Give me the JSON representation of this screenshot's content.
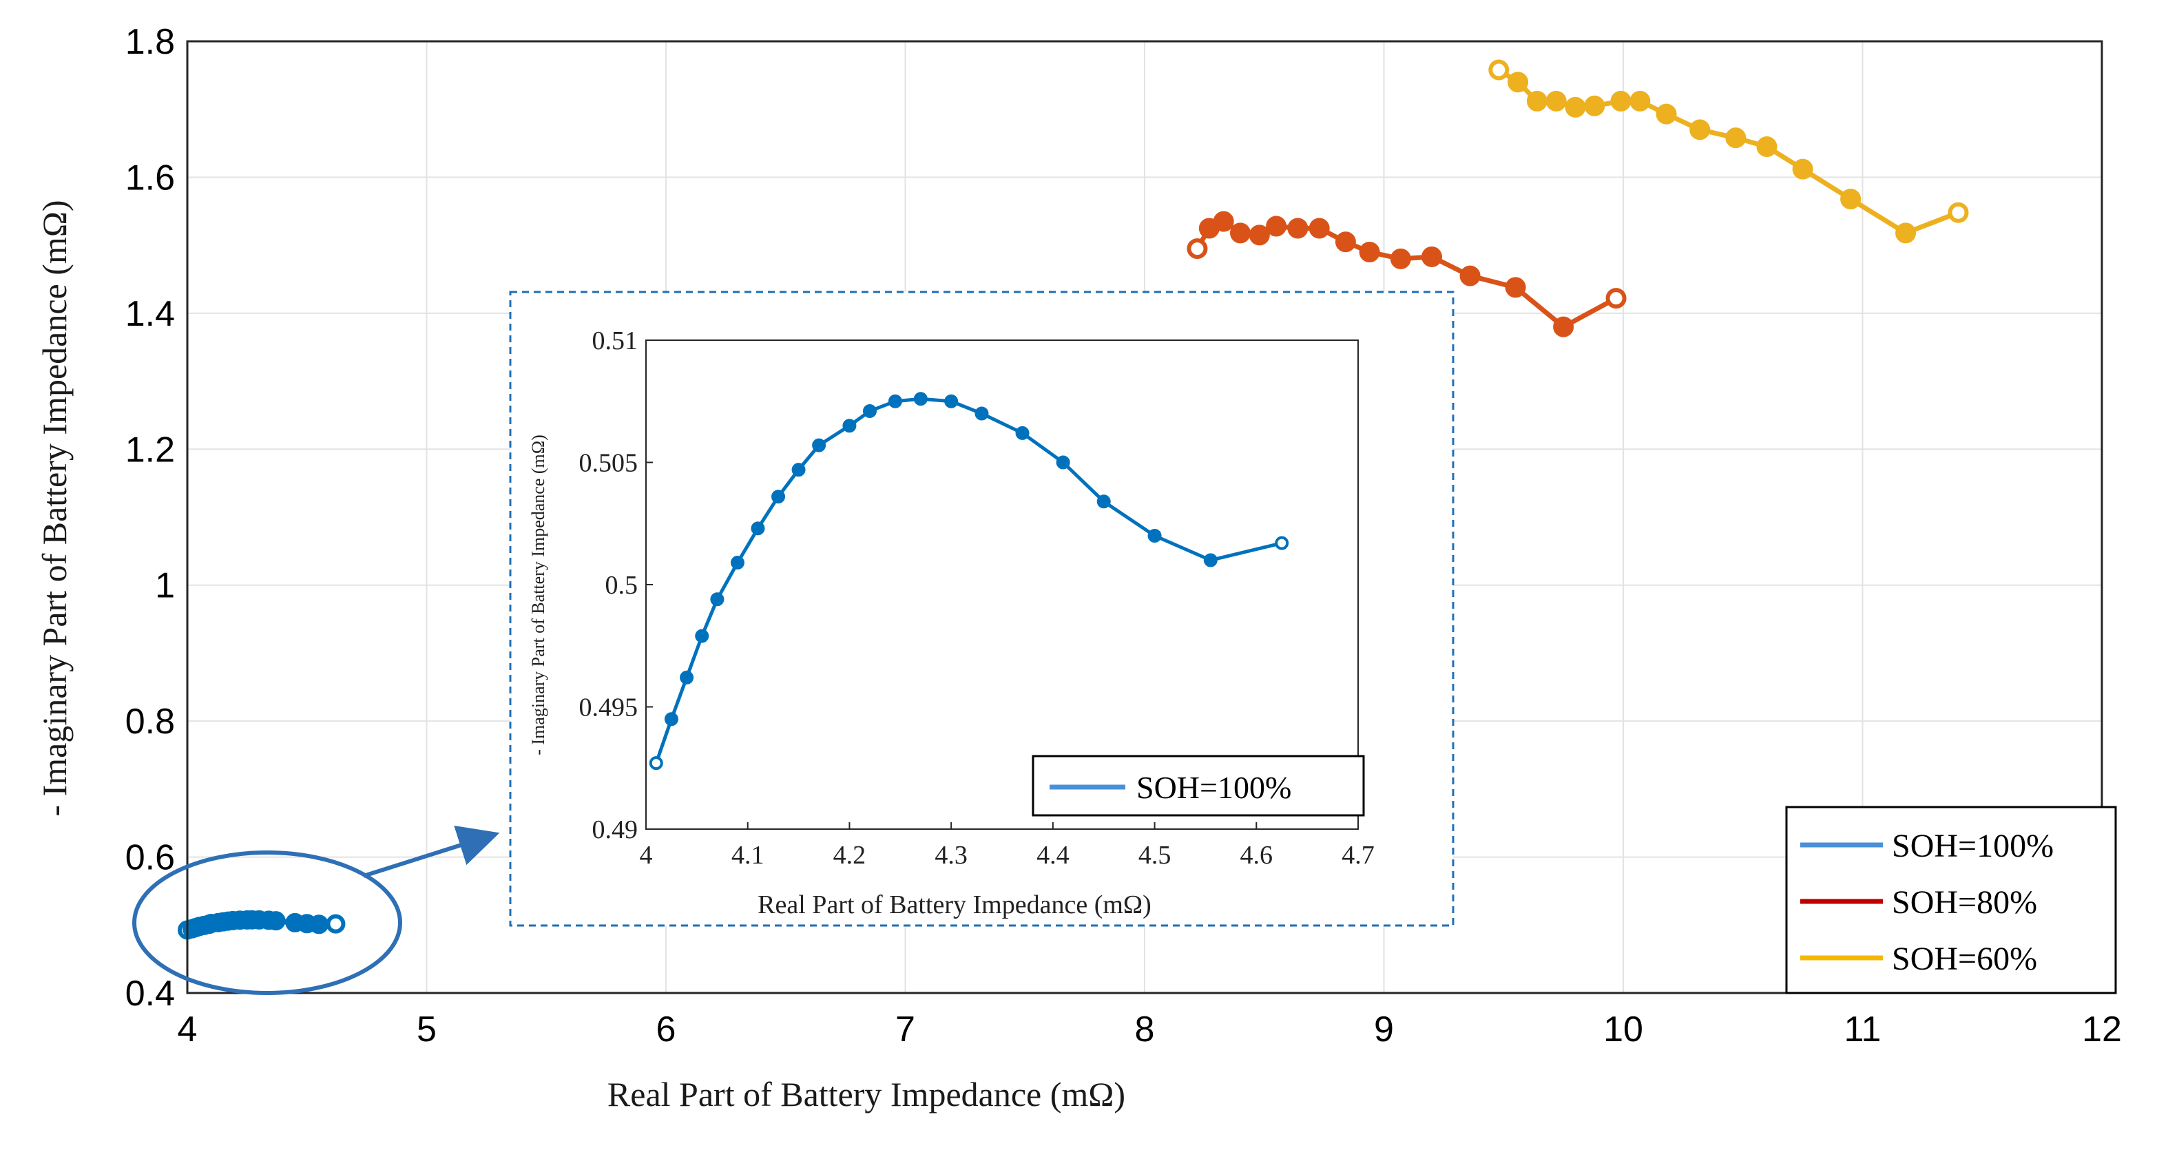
{
  "colors": {
    "soh100": "#0072BD",
    "soh100_legend": "#4A90D9",
    "soh80": "#D95319",
    "soh80_legend": "#C00000",
    "soh60": "#EDB120",
    "soh60_legend": "#F5B800",
    "grid": "#e3e3e3",
    "inset_frame": "#1f6fb5",
    "callout": "#2e6fb5"
  },
  "chart_data": [
    {
      "type": "line",
      "role": "main",
      "xlabel": "Real Part of Battery Impedance (mΩ)",
      "ylabel": "- Imaginary Part of Battery Impedance (mΩ)",
      "xlim": [
        4,
        12
      ],
      "ylim": [
        0.4,
        1.8
      ],
      "xticks": [
        4,
        5,
        6,
        7,
        8,
        9,
        10,
        11,
        12
      ],
      "yticks": [
        0.4,
        0.6,
        0.8,
        1,
        1.2,
        1.4,
        1.6,
        1.8
      ],
      "xtick_labels": [
        "4",
        "5",
        "6",
        "7",
        "8",
        "9",
        "10",
        "11",
        "12"
      ],
      "ytick_labels": [
        "0.4",
        "0.6",
        "0.8",
        "1",
        "1.2",
        "1.4",
        "1.6",
        "1.8"
      ],
      "grid": true,
      "legend_position": "bottom-right",
      "series": [
        {
          "name": "SOH=100%",
          "x": [
            4.0,
            4.02,
            4.035,
            4.05,
            4.07,
            4.09,
            4.1,
            4.13,
            4.15,
            4.17,
            4.19,
            4.22,
            4.25,
            4.27,
            4.3,
            4.34,
            4.37,
            4.45,
            4.5,
            4.55,
            4.62
          ],
          "y": [
            0.4927,
            0.4945,
            0.4962,
            0.4979,
            0.4994,
            0.5009,
            0.5023,
            0.5036,
            0.5047,
            0.5057,
            0.5065,
            0.5071,
            0.5075,
            0.5076,
            0.5075,
            0.507,
            0.5062,
            0.5034,
            0.502,
            0.501,
            0.5017
          ]
        },
        {
          "name": "SOH=80%",
          "x": [
            8.22,
            8.27,
            8.33,
            8.4,
            8.48,
            8.55,
            8.64,
            8.73,
            8.84,
            8.94,
            9.07,
            9.2,
            9.36,
            9.55,
            9.75,
            9.97
          ],
          "y": [
            1.495,
            1.525,
            1.535,
            1.518,
            1.515,
            1.528,
            1.525,
            1.525,
            1.505,
            1.49,
            1.48,
            1.483,
            1.455,
            1.438,
            1.38,
            1.422
          ]
        },
        {
          "name": "SOH=60%",
          "x": [
            9.48,
            9.56,
            9.64,
            9.72,
            9.8,
            9.88,
            9.99,
            10.07,
            10.18,
            10.32,
            10.47,
            10.6,
            10.75,
            10.95,
            11.18,
            11.4
          ],
          "y": [
            1.758,
            1.74,
            1.712,
            1.712,
            1.703,
            1.705,
            1.712,
            1.712,
            1.693,
            1.67,
            1.658,
            1.645,
            1.612,
            1.568,
            1.518,
            1.548
          ]
        }
      ],
      "callout_arrow": "from the circled SOH=100% data to the inset"
    },
    {
      "type": "line",
      "role": "inset",
      "xlabel": "Real Part of Battery Impedance (mΩ)",
      "ylabel": "- Imaginary Part of Battery Impedance (mΩ)",
      "xlim": [
        4,
        4.7
      ],
      "ylim": [
        0.49,
        0.51
      ],
      "xticks": [
        4,
        4.1,
        4.2,
        4.3,
        4.4,
        4.5,
        4.6,
        4.7
      ],
      "yticks": [
        0.49,
        0.495,
        0.5,
        0.505,
        0.51
      ],
      "xtick_labels": [
        "4",
        "4.1",
        "4.2",
        "4.3",
        "4.4",
        "4.5",
        "4.6",
        "4.7"
      ],
      "ytick_labels": [
        "0.49",
        "0.495",
        "0.5",
        "0.505",
        "0.51"
      ],
      "grid": false,
      "legend_position": "bottom-right",
      "series": [
        {
          "name": "SOH=100%",
          "x": [
            4.01,
            4.025,
            4.04,
            4.055,
            4.07,
            4.09,
            4.11,
            4.13,
            4.15,
            4.17,
            4.2,
            4.22,
            4.245,
            4.27,
            4.3,
            4.33,
            4.37,
            4.41,
            4.45,
            4.5,
            4.555,
            4.625
          ],
          "y": [
            0.4927,
            0.4945,
            0.4962,
            0.4979,
            0.4994,
            0.5009,
            0.5023,
            0.5036,
            0.5047,
            0.5057,
            0.5065,
            0.5071,
            0.5075,
            0.5076,
            0.5075,
            0.507,
            0.5062,
            0.505,
            0.5034,
            0.502,
            0.501,
            0.5017
          ]
        }
      ]
    }
  ]
}
